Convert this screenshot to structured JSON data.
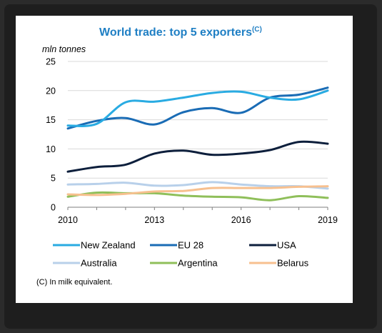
{
  "chart_data": {
    "type": "line",
    "title": "World trade: top 5 exporters",
    "title_superscript": "(C)",
    "ylabel": "mln tonnes",
    "footnote": "(C) In milk equivalent.",
    "x": [
      2010,
      2011,
      2012,
      2013,
      2014,
      2015,
      2016,
      2017,
      2018,
      2019
    ],
    "x_ticks": [
      2010,
      2013,
      2016,
      2019
    ],
    "xlim": [
      2010,
      2019
    ],
    "ylim": [
      0,
      25
    ],
    "y_ticks": [
      0,
      5,
      10,
      15,
      20,
      25
    ],
    "grid": "horizontal",
    "legend_position": "bottom",
    "series": [
      {
        "name": "New Zealand",
        "color": "#29abe2",
        "values": [
          14,
          14.3,
          18,
          18.1,
          18.8,
          19.6,
          19.8,
          18.8,
          18.5,
          20
        ]
      },
      {
        "name": "EU 28",
        "color": "#1a6cb5",
        "values": [
          13.5,
          14.8,
          15.3,
          14.2,
          16.3,
          17,
          16.2,
          18.8,
          19.3,
          20.5
        ]
      },
      {
        "name": "USA",
        "color": "#0d1f3c",
        "values": [
          6.1,
          6.9,
          7.3,
          9.2,
          9.7,
          9.0,
          9.2,
          9.8,
          11.2,
          10.9
        ]
      },
      {
        "name": "Australia",
        "color": "#b8d0ea",
        "values": [
          3.9,
          4.0,
          4.2,
          3.7,
          3.8,
          4.3,
          3.9,
          3.6,
          3.6,
          3.2
        ]
      },
      {
        "name": "Argentina",
        "color": "#8fbf5a",
        "values": [
          1.8,
          2.5,
          2.4,
          2.4,
          2.0,
          1.8,
          1.7,
          1.2,
          1.9,
          1.6
        ]
      },
      {
        "name": "Belarus",
        "color": "#f7c08f",
        "values": [
          2.2,
          2.1,
          2.3,
          2.7,
          2.8,
          3.3,
          3.3,
          3.3,
          3.5,
          3.6
        ]
      }
    ]
  }
}
